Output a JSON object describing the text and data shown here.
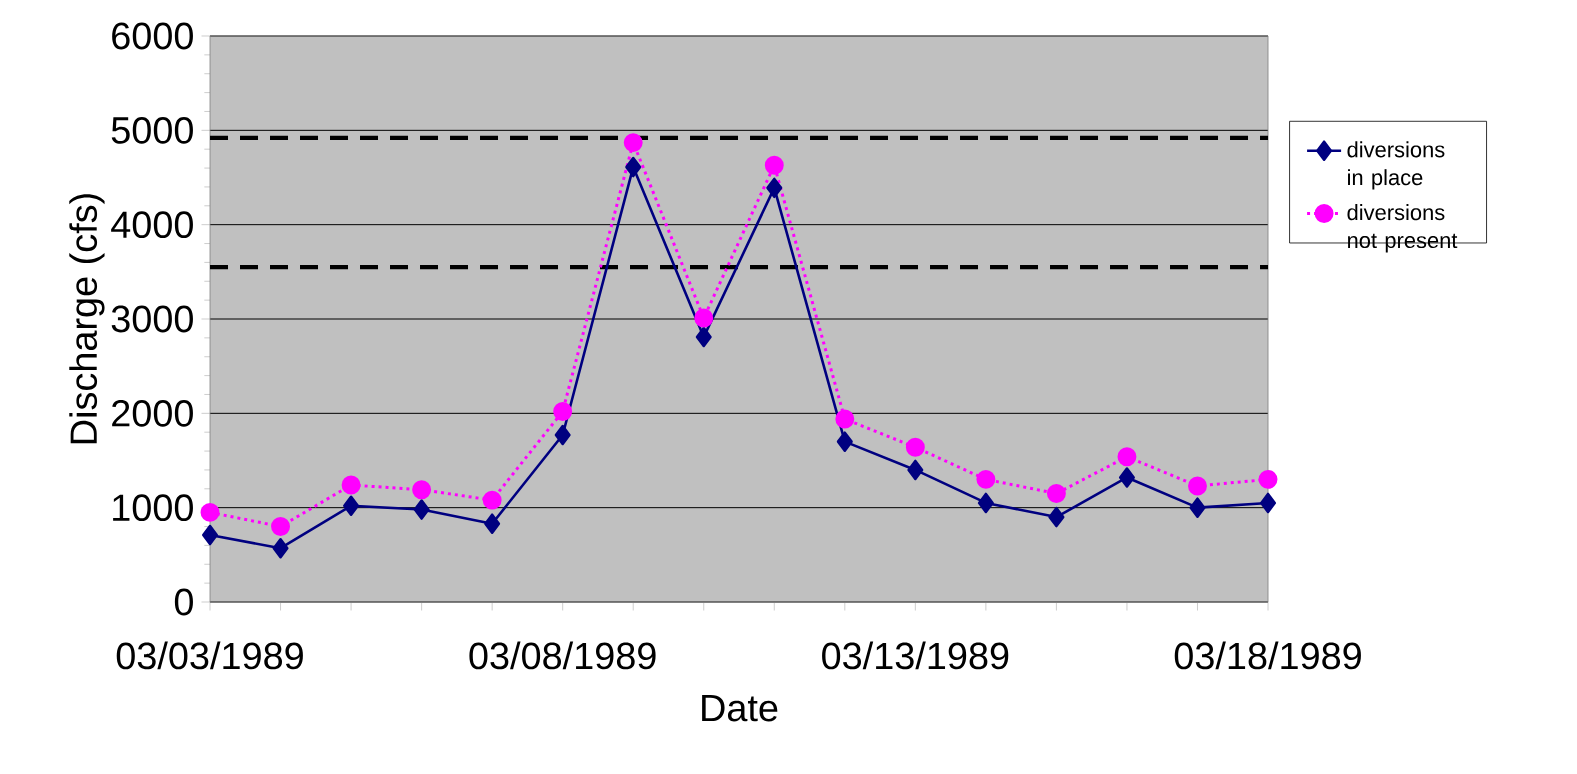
{
  "chart_data": {
    "type": "line",
    "xlabel": "Date",
    "ylabel": "Discharge (cfs)",
    "x": [
      "1989-03-03",
      "1989-03-04",
      "1989-03-05",
      "1989-03-06",
      "1989-03-07",
      "1989-03-08",
      "1989-03-09",
      "1989-03-10",
      "1989-03-11",
      "1989-03-12",
      "1989-03-13",
      "1989-03-14",
      "1989-03-15",
      "1989-03-16",
      "1989-03-17",
      "1989-03-18"
    ],
    "series": [
      {
        "name": "diversions in place",
        "color": "#000080",
        "marker": "diamond",
        "line_style": "solid",
        "values": [
          710,
          570,
          1020,
          980,
          830,
          1770,
          4610,
          2810,
          4390,
          1700,
          1400,
          1050,
          900,
          1320,
          1000,
          1050
        ]
      },
      {
        "name": "diversions not present",
        "color": "#ff00ff",
        "marker": "circle",
        "line_style": "dotted",
        "values": [
          950,
          800,
          1240,
          1190,
          1080,
          2020,
          4870,
          3010,
          4630,
          1940,
          1640,
          1300,
          1150,
          1540,
          1230,
          1300
        ]
      }
    ],
    "ref_lines": [
      {
        "axis": "y",
        "value": 4920,
        "color": "#000000",
        "line_style": "dashed"
      },
      {
        "axis": "y",
        "value": 3550,
        "color": "#000000",
        "line_style": "dashed"
      }
    ],
    "xlim": [
      "1989-03-03",
      "1989-03-18"
    ],
    "xticks": [
      {
        "value": "1989-03-03",
        "label": "03/03/1989"
      },
      {
        "value": "1989-03-04",
        "label": null
      },
      {
        "value": "1989-03-05",
        "label": null
      },
      {
        "value": "1989-03-06",
        "label": null
      },
      {
        "value": "1989-03-07",
        "label": null
      },
      {
        "value": "1989-03-08",
        "label": "03/08/1989"
      },
      {
        "value": "1989-03-09",
        "label": null
      },
      {
        "value": "1989-03-10",
        "label": null
      },
      {
        "value": "1989-03-11",
        "label": null
      },
      {
        "value": "1989-03-12",
        "label": null
      },
      {
        "value": "1989-03-13",
        "label": "03/13/1989"
      },
      {
        "value": "1989-03-14",
        "label": null
      },
      {
        "value": "1989-03-15",
        "label": null
      },
      {
        "value": "1989-03-16",
        "label": null
      },
      {
        "value": "1989-03-17",
        "label": null
      },
      {
        "value": "1989-03-18",
        "label": "03/18/1989"
      }
    ],
    "ylim": [
      0,
      6000
    ],
    "yticks": [
      0,
      1000,
      2000,
      3000,
      4000,
      5000,
      6000
    ],
    "grid": "y",
    "legend": "right"
  }
}
